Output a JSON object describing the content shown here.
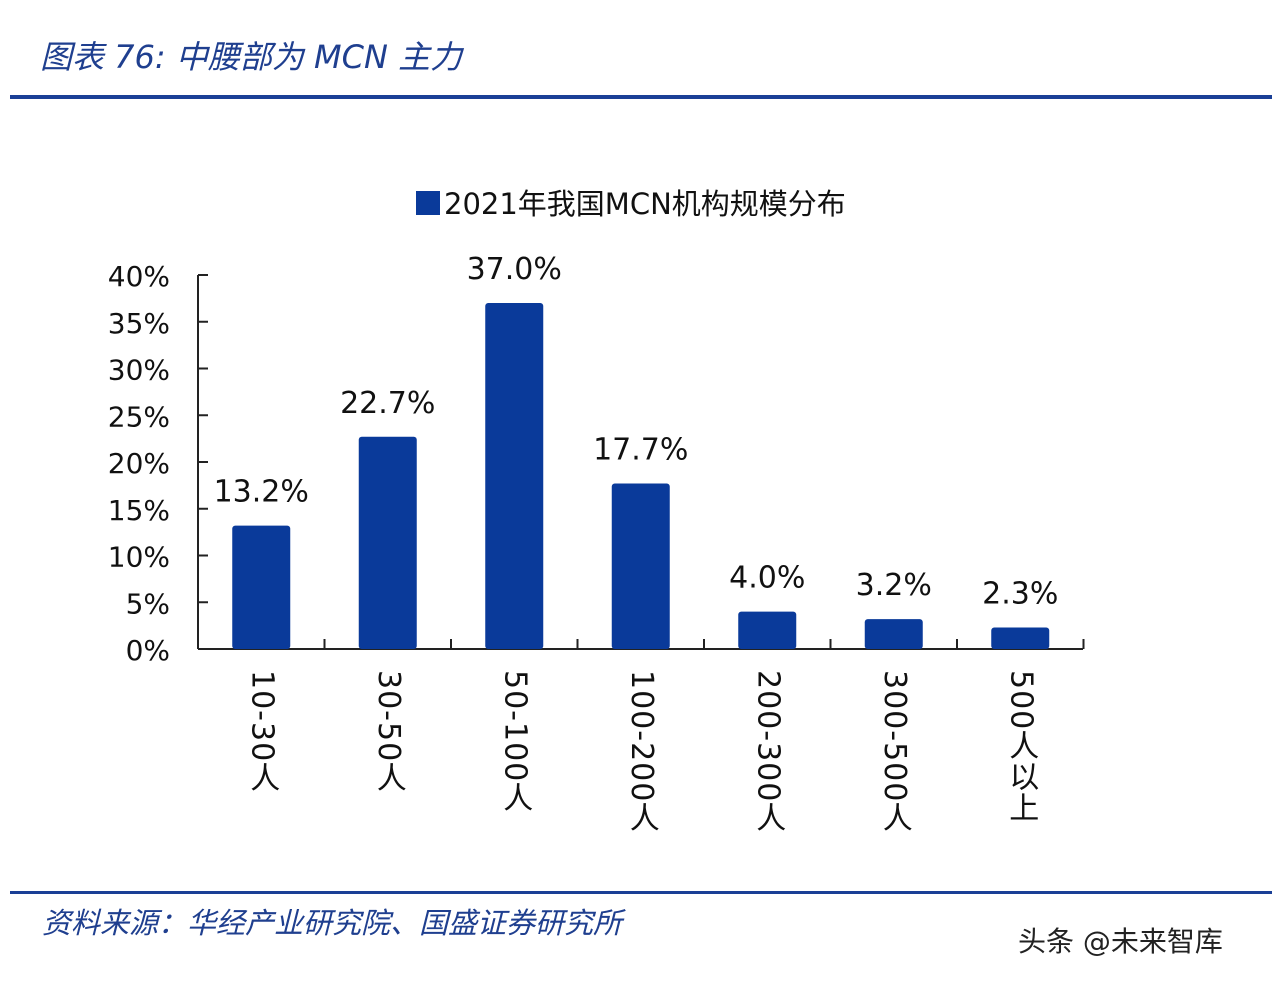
{
  "header": {
    "title": "图表 76: 中腰部为 MCN 主力"
  },
  "footer": {
    "source": "资料来源：华经产业研究院、国盛证券研究所",
    "watermark": "头条 @未来智库"
  },
  "colors": {
    "bar": "#0a3a9a",
    "accent": "#1a3f96"
  },
  "chart_data": {
    "type": "bar",
    "title": "",
    "legend": {
      "entries": [
        "2021年我国MCN机构规模分布"
      ],
      "placement": "top"
    },
    "categories": [
      "10-30人",
      "30-50人",
      "50-100人",
      "100-200人",
      "200-300人",
      "300-500人",
      "500人以上"
    ],
    "series": [
      {
        "name": "2021年我国MCN机构规模分布",
        "values": [
          13.2,
          22.7,
          37.0,
          17.7,
          4.0,
          3.2,
          2.3
        ]
      }
    ],
    "data_labels": [
      "13.2%",
      "22.7%",
      "37.0%",
      "17.7%",
      "4.0%",
      "3.2%",
      "2.3%"
    ],
    "ylim": [
      0,
      40
    ],
    "yticks": [
      "0%",
      "5%",
      "10%",
      "15%",
      "20%",
      "25%",
      "30%",
      "35%",
      "40%"
    ],
    "xlabel": "",
    "ylabel": "",
    "grid": false
  }
}
